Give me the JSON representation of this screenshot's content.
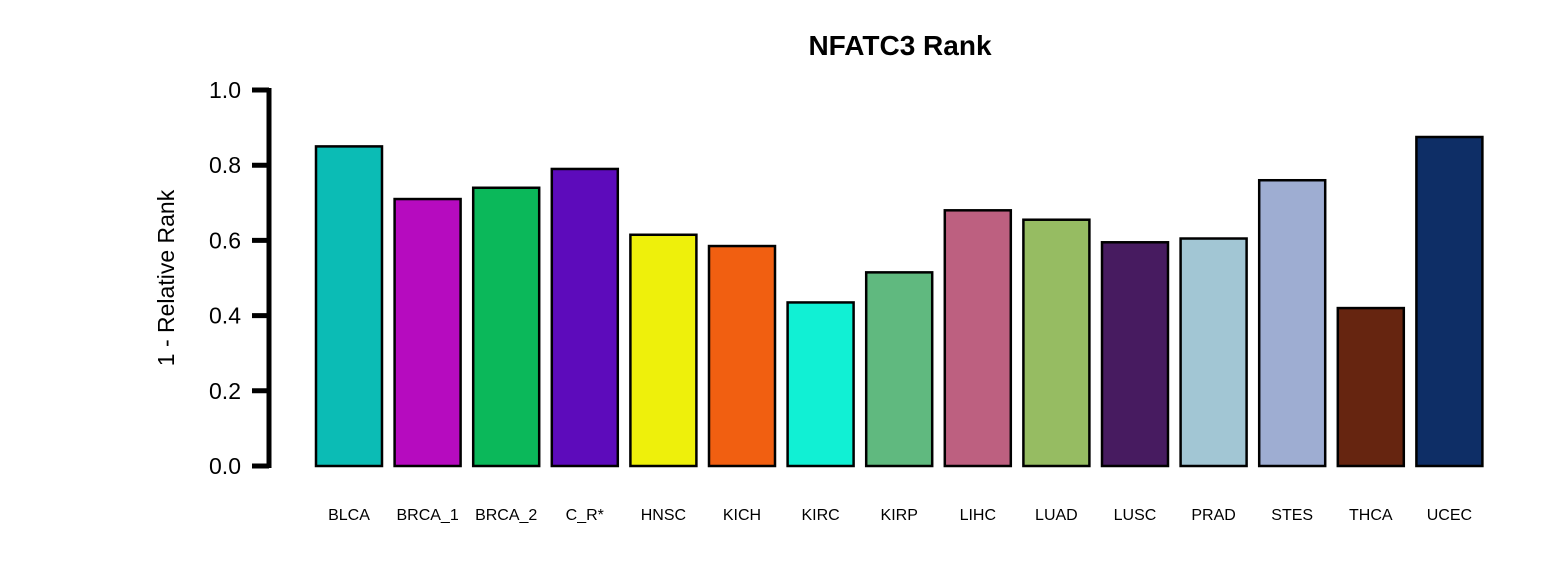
{
  "chart_data": {
    "type": "bar",
    "title": "NFATC3 Rank",
    "ylabel": "1 - Relative Rank",
    "xlabel": "",
    "ylim": [
      0,
      1
    ],
    "yticks": [
      "0.0",
      "0.2",
      "0.4",
      "0.6",
      "0.8",
      "1.0"
    ],
    "grid": false,
    "legend": "none",
    "categories": [
      "BLCA",
      "BRCA_1",
      "BRCA_2",
      "C_R*",
      "HNSC",
      "KICH",
      "KIRC",
      "KIRP",
      "LIHC",
      "LUAD",
      "LUSC",
      "PRAD",
      "STES",
      "THCA",
      "UCEC"
    ],
    "values": [
      0.85,
      0.71,
      0.74,
      0.79,
      0.615,
      0.585,
      0.435,
      0.515,
      0.68,
      0.655,
      0.595,
      0.605,
      0.76,
      0.42,
      0.875
    ],
    "colors": [
      "#0bbcb5",
      "#b60bbf",
      "#0bb85a",
      "#5d0bbb",
      "#eef00b",
      "#f15f11",
      "#11f0d4",
      "#60b97f",
      "#bd6080",
      "#96bc62",
      "#471b60",
      "#a2c6d4",
      "#9eadd2",
      "#662510",
      "#0e2e66"
    ]
  }
}
